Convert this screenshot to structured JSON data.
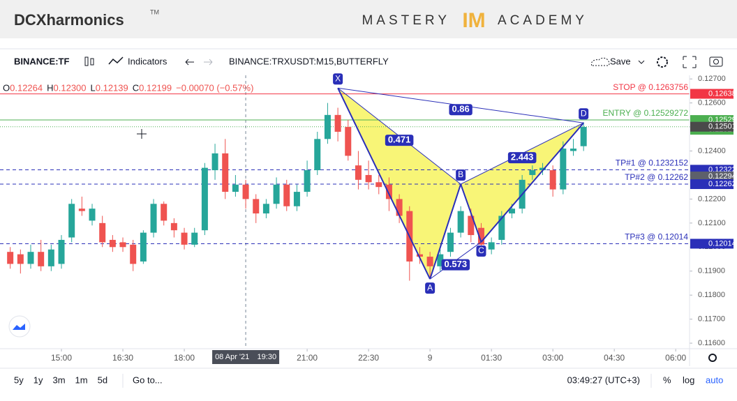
{
  "header": {
    "brand": "DCXharmonics",
    "trademark": "TM",
    "logo_left": "MASTERY",
    "logo_mark": "IM",
    "logo_right": "ACADEMY"
  },
  "toolbar": {
    "symbol": "BINANCE:TF",
    "indicators": "Indicators",
    "study": "BINANCE:TRXUSDT:M15,BUTTERFLY",
    "save": "Save"
  },
  "legend": [
    {
      "label": "O",
      "value": "0.12264"
    },
    {
      "label": "H",
      "value": "0.12300"
    },
    {
      "label": "L",
      "value": "0.12139"
    },
    {
      "label": "C",
      "value": "0.12199"
    },
    {
      "label": "",
      "value": "−0.00070 (−0.57%)"
    }
  ],
  "chart_data": {
    "type": "candlestick",
    "open": [
      0.1198,
      0.1197,
      0.1193,
      0.1198,
      0.1192,
      0.1193,
      0.1204,
      0.1216,
      0.1211,
      0.121,
      0.1203,
      0.1202,
      0.1201,
      0.1194,
      0.1206,
      0.1218,
      0.121,
      0.1206,
      0.1201,
      0.1207,
      0.1232,
      0.1239,
      0.1223,
      0.1226,
      0.122,
      0.1214,
      0.1218,
      0.1226,
      0.1217,
      0.1223,
      0.1232,
      0.1245,
      0.1255,
      0.125,
      0.1234,
      0.123,
      0.1227,
      0.1226,
      0.122,
      0.1215,
      0.1197,
      0.1196,
      0.1192,
      0.1198,
      0.1206,
      0.1213,
      0.1208,
      0.1199,
      0.1203,
      0.1214,
      0.1216,
      0.123,
      0.1232,
      0.1232,
      0.1224,
      0.124,
      0.1242
    ],
    "high": [
      0.12,
      0.1199,
      0.1201,
      0.1203,
      0.1201,
      0.1205,
      0.122,
      0.1221,
      0.1218,
      0.1213,
      0.1205,
      0.1204,
      0.1203,
      0.1207,
      0.122,
      0.1219,
      0.1212,
      0.1208,
      0.1208,
      0.1235,
      0.1243,
      0.1245,
      0.123,
      0.1228,
      0.1222,
      0.122,
      0.1229,
      0.1228,
      0.1226,
      0.1236,
      0.1248,
      0.126,
      0.1258,
      0.1253,
      0.124,
      0.1236,
      0.123,
      0.1229,
      0.1222,
      0.1217,
      0.12,
      0.1198,
      0.1199,
      0.1208,
      0.1217,
      0.1216,
      0.121,
      0.1204,
      0.1215,
      0.1218,
      0.123,
      0.1234,
      0.1235,
      0.1234,
      0.1244,
      0.1245,
      0.1252
    ],
    "low": [
      0.1191,
      0.1189,
      0.1191,
      0.119,
      0.119,
      0.1191,
      0.1202,
      0.1213,
      0.1209,
      0.12,
      0.1198,
      0.1198,
      0.119,
      0.1193,
      0.1204,
      0.1209,
      0.1204,
      0.1199,
      0.12,
      0.1205,
      0.1228,
      0.122,
      0.1221,
      0.1216,
      0.121,
      0.1212,
      0.1216,
      0.1215,
      0.1215,
      0.1221,
      0.123,
      0.1243,
      0.1244,
      0.1236,
      0.1224,
      0.1224,
      0.1222,
      0.1215,
      0.121,
      0.1186,
      0.1193,
      0.1187,
      0.119,
      0.1196,
      0.1204,
      0.1202,
      0.1199,
      0.1197,
      0.1201,
      0.1212,
      0.1214,
      0.1228,
      0.123,
      0.1221,
      0.1222,
      0.1238,
      0.124
    ],
    "close": [
      0.1193,
      0.1193,
      0.1198,
      0.1192,
      0.1199,
      0.1203,
      0.1218,
      0.1215,
      0.1216,
      0.1202,
      0.12,
      0.12,
      0.1193,
      0.1206,
      0.1218,
      0.1211,
      0.1207,
      0.1201,
      0.1206,
      0.1233,
      0.1239,
      0.1223,
      0.1226,
      0.122,
      0.1214,
      0.1218,
      0.1226,
      0.1217,
      0.1223,
      0.1232,
      0.1245,
      0.1255,
      0.1248,
      0.1238,
      0.1228,
      0.1227,
      0.1225,
      0.122,
      0.1213,
      0.1194,
      0.1196,
      0.1192,
      0.1197,
      0.1206,
      0.1215,
      0.1205,
      0.1201,
      0.1202,
      0.1213,
      0.1216,
      0.1228,
      0.1232,
      0.1233,
      0.1224,
      0.1241,
      0.1241,
      0.125
    ],
    "up_color": "#26a69a",
    "down_color": "#ef5350",
    "xlim": [
      -1,
      66.35
    ],
    "ylim": [
      0.11577,
      0.12715
    ],
    "xticks": [
      {
        "value": 5,
        "label": "15:00"
      },
      {
        "value": 11,
        "label": "16:30"
      },
      {
        "value": 17,
        "label": "18:00"
      },
      {
        "value": 29,
        "label": "21:00"
      },
      {
        "value": 35,
        "label": "22:30"
      },
      {
        "value": 41,
        "label": "9"
      },
      {
        "value": 47,
        "label": "01:30"
      },
      {
        "value": 53,
        "label": "03:00"
      },
      {
        "value": 59,
        "label": "04:30"
      },
      {
        "value": 65,
        "label": "06:00"
      }
    ],
    "yticks": [
      {
        "value": 0.127,
        "label": "0.12700"
      },
      {
        "value": 0.126,
        "label": "0.12600"
      },
      {
        "value": 0.125,
        "label": "0.12500"
      },
      {
        "value": 0.124,
        "label": "0.12400"
      },
      {
        "value": 0.123,
        "label": "0.12300"
      },
      {
        "value": 0.122,
        "label": "0.12200"
      },
      {
        "value": 0.121,
        "label": "0.12100"
      },
      {
        "value": 0.12,
        "label": "0.12000"
      },
      {
        "value": 0.119,
        "label": "0.11900"
      },
      {
        "value": 0.118,
        "label": "0.11800"
      },
      {
        "value": 0.117,
        "label": "0.11700"
      },
      {
        "value": 0.116,
        "label": "0.11600"
      }
    ],
    "crosshair": {
      "x": 23,
      "date": "08 Apr '21",
      "time": "19:30"
    },
    "levels": [
      {
        "name": "STOP @ 0.1263756",
        "value": 0.1263756,
        "color": "#f23645",
        "style": "solid"
      },
      {
        "name": "ENTRY @ 0.12529272",
        "value": 0.12529272,
        "color": "#4caf50",
        "style": "solid"
      },
      {
        "name": "TP#1 @ 0.1232152",
        "value": 0.1232152,
        "color": "#2a2fb8",
        "style": "dashed"
      },
      {
        "name": "TP#2 @ 0.12262",
        "value": 0.12262,
        "color": "#2a2fb8",
        "style": "dashed"
      },
      {
        "name": "TP#3 @ 0.12014",
        "value": 0.12014,
        "color": "#2a2fb8",
        "style": "dashed"
      }
    ],
    "price_tags": [
      {
        "value": 0.12638,
        "color": "#f23645"
      },
      {
        "value": 0.12529,
        "color": "#4caf50"
      },
      {
        "value": 0.12529,
        "color": "#4caf50"
      },
      {
        "value": 0.12501,
        "color": "#4a4a4a"
      },
      {
        "value": 0.12322,
        "color": "#2a2fb8"
      },
      {
        "value": 0.12294,
        "color": "#5d606b"
      },
      {
        "value": 0.12262,
        "color": "#2a2fb8"
      },
      {
        "value": 0.12014,
        "color": "#2a2fb8"
      }
    ],
    "pattern": {
      "color": "#2a2fb8",
      "fill": "#f5f24a",
      "points": [
        {
          "label": "X",
          "x": 32,
          "y": 0.12662
        },
        {
          "label": "A",
          "x": 41,
          "y": 0.11867
        },
        {
          "label": "B",
          "x": 44,
          "y": 0.12262
        },
        {
          "label": "C",
          "x": 46,
          "y": 0.12021
        },
        {
          "label": "D",
          "x": 56,
          "y": 0.12517
        }
      ],
      "ratios": [
        {
          "label": "0.471",
          "from": "X",
          "to": "B"
        },
        {
          "label": "0.573",
          "from": "A",
          "to": "C"
        },
        {
          "label": "2.443",
          "from": "B",
          "to": "D"
        },
        {
          "label": "0.86",
          "from": "X",
          "to": "D"
        }
      ]
    }
  },
  "bottom_bar": {
    "ranges": [
      "5y",
      "1y",
      "3m",
      "1m",
      "5d"
    ],
    "goto": "Go to...",
    "clock": "03:49:27 (UTC+3)",
    "percent": "%",
    "log": "log",
    "auto": "auto"
  }
}
